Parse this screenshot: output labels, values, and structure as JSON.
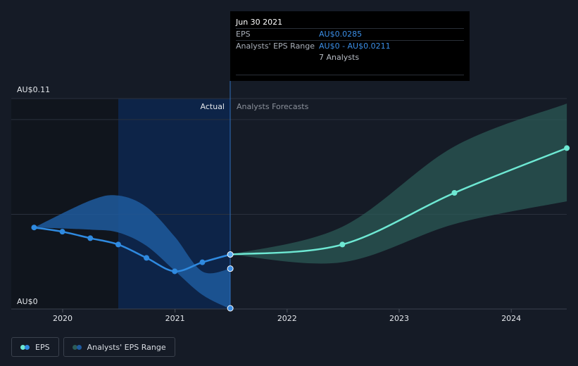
{
  "tooltip": {
    "date": "Jun 30 2021",
    "eps_label": "EPS",
    "eps_value": "AU$0.0285",
    "range_label": "Analysts' EPS Range",
    "range_value": "AU$0 - AU$0.0211",
    "analysts": "7 Analysts"
  },
  "legend": {
    "eps": "EPS",
    "range": "Analysts' EPS Range"
  },
  "colors": {
    "background": "#151b26",
    "eps_actual": "#2f8ae0",
    "eps_forecast": "#6ee8d3",
    "range_actual": "#1e5a9e",
    "range_forecast": "#2c5c58",
    "highlight": "#0d2448"
  },
  "chart_data": {
    "type": "line",
    "title": "",
    "xlabel": "",
    "ylabel": "",
    "ylim": [
      0,
      0.11
    ],
    "y_tick_labels": [
      "AU$0",
      "AU$0.11"
    ],
    "x_tick_labels": [
      "2020",
      "2021",
      "2022",
      "2023",
      "2024"
    ],
    "region_labels": {
      "actual": "Actual",
      "forecast": "Analysts Forecasts"
    },
    "divider_date": "2021-06-30",
    "series": [
      {
        "name": "EPS",
        "segment": "actual",
        "points": [
          [
            "2019-09-30",
            0.0426
          ],
          [
            "2019-12-31",
            0.0404
          ],
          [
            "2020-03-31",
            0.037
          ],
          [
            "2020-06-30",
            0.0337
          ],
          [
            "2020-09-30",
            0.0267
          ],
          [
            "2020-12-31",
            0.0197
          ],
          [
            "2021-03-31",
            0.0244
          ],
          [
            "2021-06-30",
            0.0285
          ]
        ]
      },
      {
        "name": "EPS",
        "segment": "forecast",
        "points": [
          [
            "2021-06-30",
            0.0285
          ],
          [
            "2022-06-30",
            0.0337
          ],
          [
            "2023-06-30",
            0.0607
          ],
          [
            "2024-06-30",
            0.0841
          ]
        ]
      },
      {
        "name": "Analysts' EPS Range",
        "segment": "actual",
        "high": [
          [
            "2019-09-30",
            0.0426
          ],
          [
            "2020-03-31",
            0.0567
          ],
          [
            "2020-06-30",
            0.0593
          ],
          [
            "2020-09-30",
            0.0533
          ],
          [
            "2020-12-31",
            0.0378
          ],
          [
            "2021-03-31",
            0.0196
          ],
          [
            "2021-06-30",
            0.0211
          ]
        ],
        "low": [
          [
            "2019-09-30",
            0.0426
          ],
          [
            "2020-03-31",
            0.0415
          ],
          [
            "2020-06-30",
            0.04
          ],
          [
            "2020-09-30",
            0.033
          ],
          [
            "2020-12-31",
            0.02
          ],
          [
            "2021-03-31",
            0.0074
          ],
          [
            "2021-06-30",
            0.0
          ]
        ]
      },
      {
        "name": "Analysts' EPS Range",
        "segment": "forecast",
        "high": [
          [
            "2021-06-30",
            0.0285
          ],
          [
            "2022-06-30",
            0.043
          ],
          [
            "2023-06-30",
            0.085
          ],
          [
            "2024-06-30",
            0.1074
          ]
        ],
        "low": [
          [
            "2021-06-30",
            0.0285
          ],
          [
            "2022-06-30",
            0.0244
          ],
          [
            "2023-06-30",
            0.0444
          ],
          [
            "2024-06-30",
            0.0563
          ]
        ]
      }
    ]
  }
}
